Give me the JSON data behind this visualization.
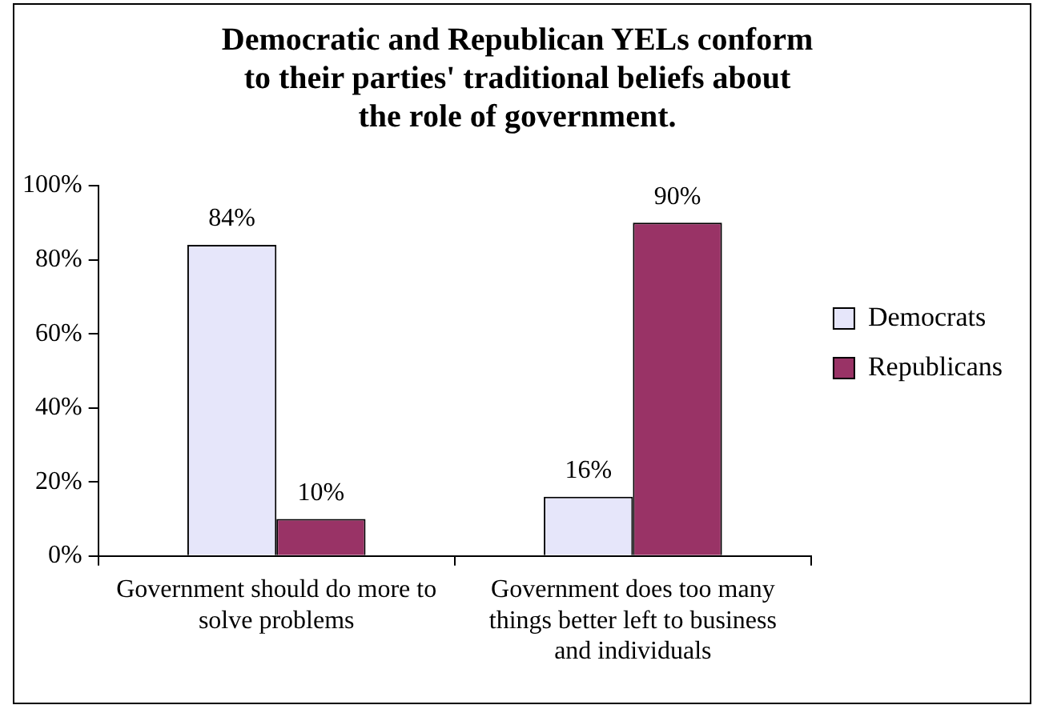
{
  "chart_data": {
    "type": "bar",
    "title": "Democratic and Republican YELs conform\nto their parties' traditional beliefs about\nthe role of government.",
    "categories": [
      "Government should do more to solve problems",
      "Government does too many things better left to business and individuals"
    ],
    "series": [
      {
        "name": "Democrats",
        "color": "#e6e6fa",
        "values": [
          84,
          16
        ],
        "value_labels": [
          "84%",
          "16%"
        ]
      },
      {
        "name": "Republicans",
        "color": "#993366",
        "values": [
          10,
          90
        ],
        "value_labels": [
          "10%",
          "90%"
        ]
      }
    ],
    "ylim": [
      0,
      100
    ],
    "yticks": [
      {
        "value": 0,
        "label": "0%"
      },
      {
        "value": 20,
        "label": "20%"
      },
      {
        "value": 40,
        "label": "40%"
      },
      {
        "value": 60,
        "label": "60%"
      },
      {
        "value": 80,
        "label": "80%"
      },
      {
        "value": 100,
        "label": "100%"
      }
    ],
    "grid": false,
    "legend": "right"
  }
}
